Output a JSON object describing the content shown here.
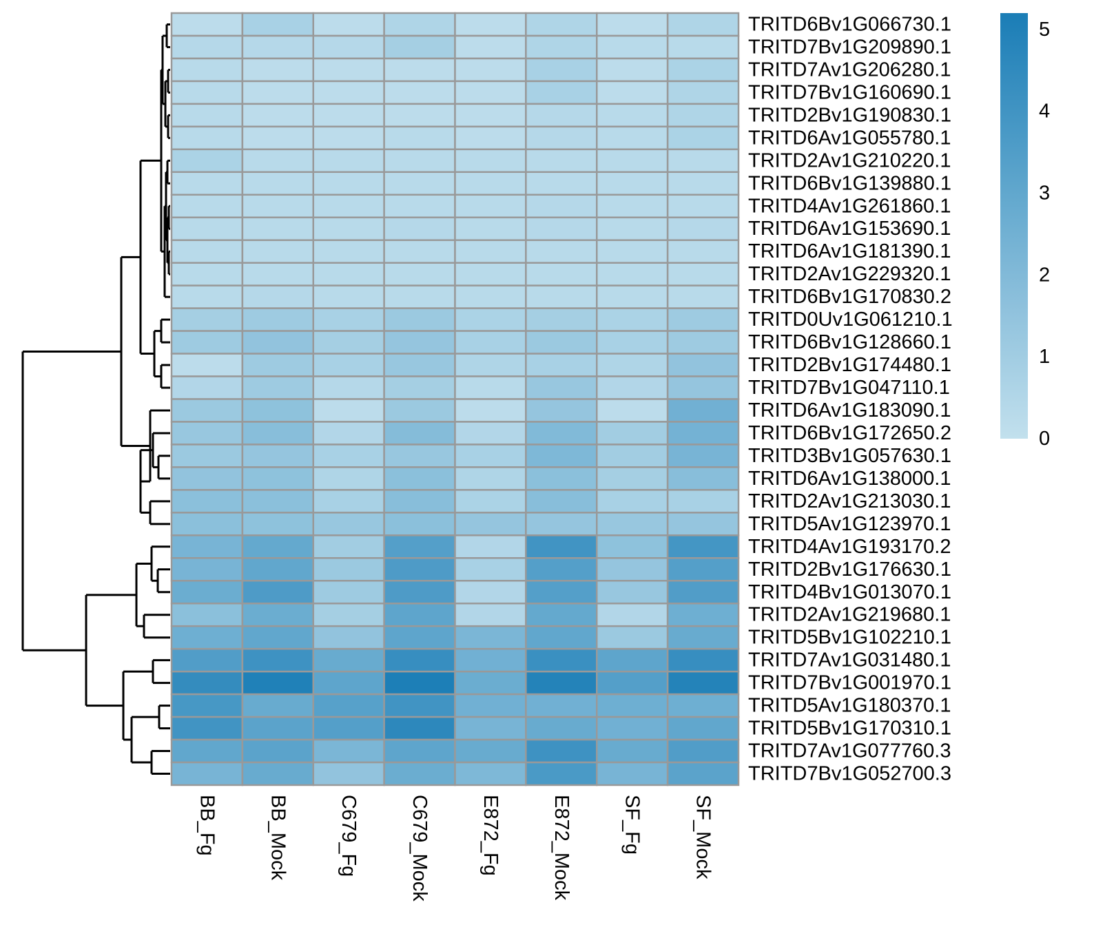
{
  "chart_data": {
    "type": "heatmap",
    "title": "",
    "xlabel": "",
    "ylabel": "",
    "columns": [
      "BB_Fg",
      "BB_Mock",
      "C679_Fg",
      "C679_Mock",
      "E872_Fg",
      "E872_Mock",
      "SF_Fg",
      "SF_Mock"
    ],
    "rows": [
      "TRITD6Bv1G066730.1",
      "TRITD7Bv1G209890.1",
      "TRITD7Av1G206280.1",
      "TRITD7Bv1G160690.1",
      "TRITD2Bv1G190830.1",
      "TRITD6Av1G055780.1",
      "TRITD2Av1G210220.1",
      "TRITD6Bv1G139880.1",
      "TRITD4Av1G261860.1",
      "TRITD6Av1G153690.1",
      "TRITD6Av1G181390.1",
      "TRITD2Av1G229320.1",
      "TRITD6Bv1G170830.2",
      "TRITD0Uv1G061210.1",
      "TRITD6Bv1G128660.1",
      "TRITD2Bv1G174480.1",
      "TRITD7Bv1G047110.1",
      "TRITD6Av1G183090.1",
      "TRITD6Bv1G172650.2",
      "TRITD3Bv1G057630.1",
      "TRITD6Av1G138000.1",
      "TRITD2Av1G213030.1",
      "TRITD5Av1G123970.1",
      "TRITD4Av1G193170.2",
      "TRITD2Bv1G176630.1",
      "TRITD4Bv1G013070.1",
      "TRITD2Av1G219680.1",
      "TRITD5Bv1G102210.1",
      "TRITD7Av1G031480.1",
      "TRITD7Bv1G001970.1",
      "TRITD5Av1G180370.1",
      "TRITD5Bv1G170310.1",
      "TRITD7Av1G077760.3",
      "TRITD7Bv1G052700.3"
    ],
    "values": [
      [
        0.2,
        0.8,
        0.2,
        0.6,
        0.2,
        0.6,
        0.2,
        0.6
      ],
      [
        0.4,
        0.4,
        0.4,
        0.9,
        0.2,
        0.6,
        0.3,
        0.3
      ],
      [
        0.3,
        0.2,
        0.2,
        0.2,
        0.2,
        0.8,
        0.2,
        0.7
      ],
      [
        0.3,
        0.2,
        0.2,
        0.2,
        0.2,
        0.8,
        0.2,
        0.6
      ],
      [
        0.3,
        0.2,
        0.2,
        0.2,
        0.2,
        0.4,
        0.3,
        0.6
      ],
      [
        0.3,
        0.2,
        0.2,
        0.3,
        0.2,
        0.4,
        0.3,
        0.7
      ],
      [
        0.7,
        0.3,
        0.3,
        0.3,
        0.3,
        0.3,
        0.3,
        0.3
      ],
      [
        0.3,
        0.3,
        0.3,
        0.3,
        0.3,
        0.3,
        0.3,
        0.3
      ],
      [
        0.3,
        0.3,
        0.3,
        0.3,
        0.3,
        0.4,
        0.3,
        0.3
      ],
      [
        0.3,
        0.3,
        0.3,
        0.4,
        0.3,
        0.4,
        0.3,
        0.4
      ],
      [
        0.3,
        0.3,
        0.3,
        0.3,
        0.3,
        0.3,
        0.3,
        0.3
      ],
      [
        0.3,
        0.3,
        0.3,
        0.3,
        0.3,
        0.3,
        0.3,
        0.3
      ],
      [
        0.3,
        0.4,
        0.3,
        0.3,
        0.3,
        0.3,
        0.3,
        0.3
      ],
      [
        0.9,
        1.1,
        0.8,
        1.2,
        0.7,
        0.9,
        0.7,
        1.1
      ],
      [
        1.1,
        1.5,
        0.9,
        1.4,
        0.8,
        1.2,
        0.8,
        1.1
      ],
      [
        0.2,
        1.1,
        0.8,
        1.3,
        0.6,
        0.8,
        0.6,
        1.5
      ],
      [
        0.5,
        1.1,
        0.4,
        0.9,
        0.3,
        1.3,
        0.5,
        1.4
      ],
      [
        1.2,
        1.6,
        0.2,
        1.2,
        0.2,
        1.4,
        0.2,
        2.5
      ],
      [
        1.3,
        1.8,
        0.5,
        1.9,
        0.5,
        2.0,
        1.0,
        2.4
      ],
      [
        1.2,
        1.4,
        0.8,
        1.3,
        0.8,
        2.1,
        1.0,
        2.3
      ],
      [
        1.5,
        1.6,
        0.6,
        1.7,
        0.6,
        1.7,
        0.9,
        1.8
      ],
      [
        1.7,
        1.7,
        0.8,
        1.8,
        0.7,
        1.8,
        0.8,
        0.8
      ],
      [
        1.7,
        1.6,
        1.3,
        1.7,
        1.4,
        1.4,
        1.3,
        1.4
      ],
      [
        2.3,
        2.9,
        1.0,
        3.4,
        0.5,
        4.0,
        1.6,
        3.9
      ],
      [
        2.3,
        3.0,
        1.2,
        3.6,
        0.8,
        3.4,
        1.4,
        3.4
      ],
      [
        2.7,
        3.6,
        1.1,
        3.6,
        0.5,
        3.4,
        1.3,
        3.5
      ],
      [
        1.7,
        2.7,
        0.9,
        3.1,
        0.5,
        2.9,
        0.5,
        2.6
      ],
      [
        2.6,
        3.0,
        1.5,
        3.1,
        2.2,
        3.0,
        1.2,
        2.8
      ],
      [
        3.5,
        4.1,
        2.8,
        4.3,
        2.5,
        4.2,
        3.1,
        4.3
      ],
      [
        4.4,
        5.0,
        3.1,
        5.1,
        2.7,
        4.9,
        3.4,
        4.9
      ],
      [
        3.8,
        2.8,
        3.3,
        4.0,
        2.5,
        2.5,
        2.6,
        2.6
      ],
      [
        4.0,
        3.2,
        3.4,
        4.6,
        2.3,
        2.8,
        2.5,
        3.0
      ],
      [
        3.0,
        3.2,
        2.2,
        3.1,
        2.8,
        4.1,
        2.8,
        3.5
      ],
      [
        2.3,
        2.8,
        1.5,
        2.7,
        2.1,
        3.7,
        2.3,
        3.2
      ]
    ],
    "colorbar": {
      "min": 0,
      "max": 5.2,
      "ticks": [
        "0",
        "1",
        "2",
        "3",
        "4",
        "5"
      ],
      "low_color": "#c2e0ed",
      "high_color": "#1a7db6"
    },
    "cell_border_color": "#999999",
    "dendrogram": "rows"
  }
}
